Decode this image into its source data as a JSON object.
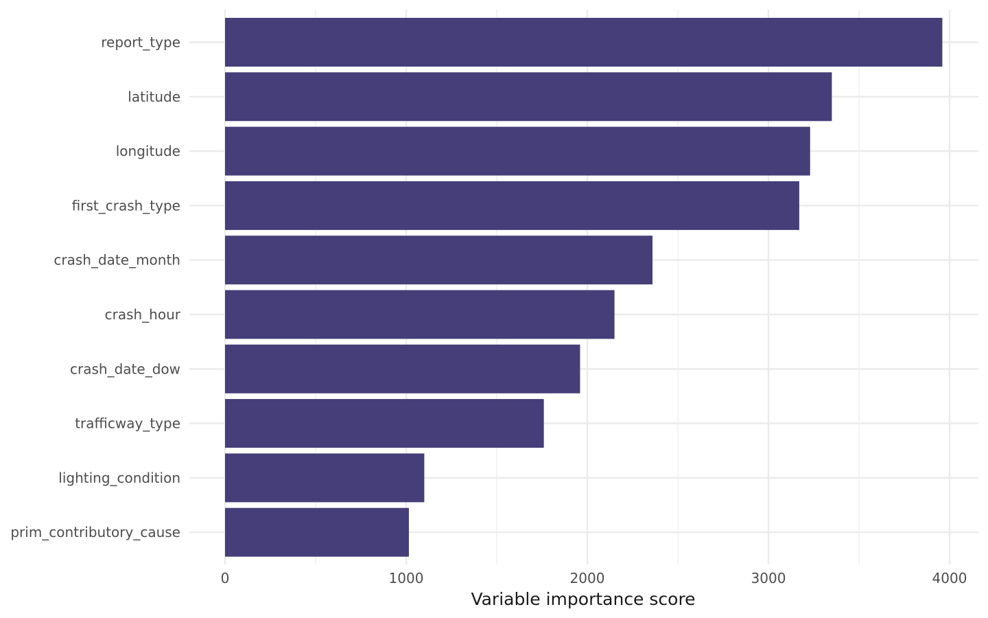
{
  "chart_data": {
    "type": "bar",
    "orientation": "horizontal",
    "categories": [
      "report_type",
      "latitude",
      "longitude",
      "first_crash_type",
      "crash_date_month",
      "crash_hour",
      "crash_date_dow",
      "trafficway_type",
      "lighting_condition",
      "prim_contributory_cause"
    ],
    "values": [
      3960,
      3350,
      3230,
      3170,
      2360,
      2150,
      1960,
      1760,
      1100,
      1015
    ],
    "xlabel": "Variable importance score",
    "ylabel": "",
    "xlim": [
      0,
      4000
    ],
    "x_ticks": [
      0,
      1000,
      2000,
      3000,
      4000
    ],
    "x_tick_labels": [
      "0",
      "1000",
      "2000",
      "3000",
      "4000"
    ],
    "bar_color": "#3f3875",
    "grid": true,
    "legend": "none"
  }
}
